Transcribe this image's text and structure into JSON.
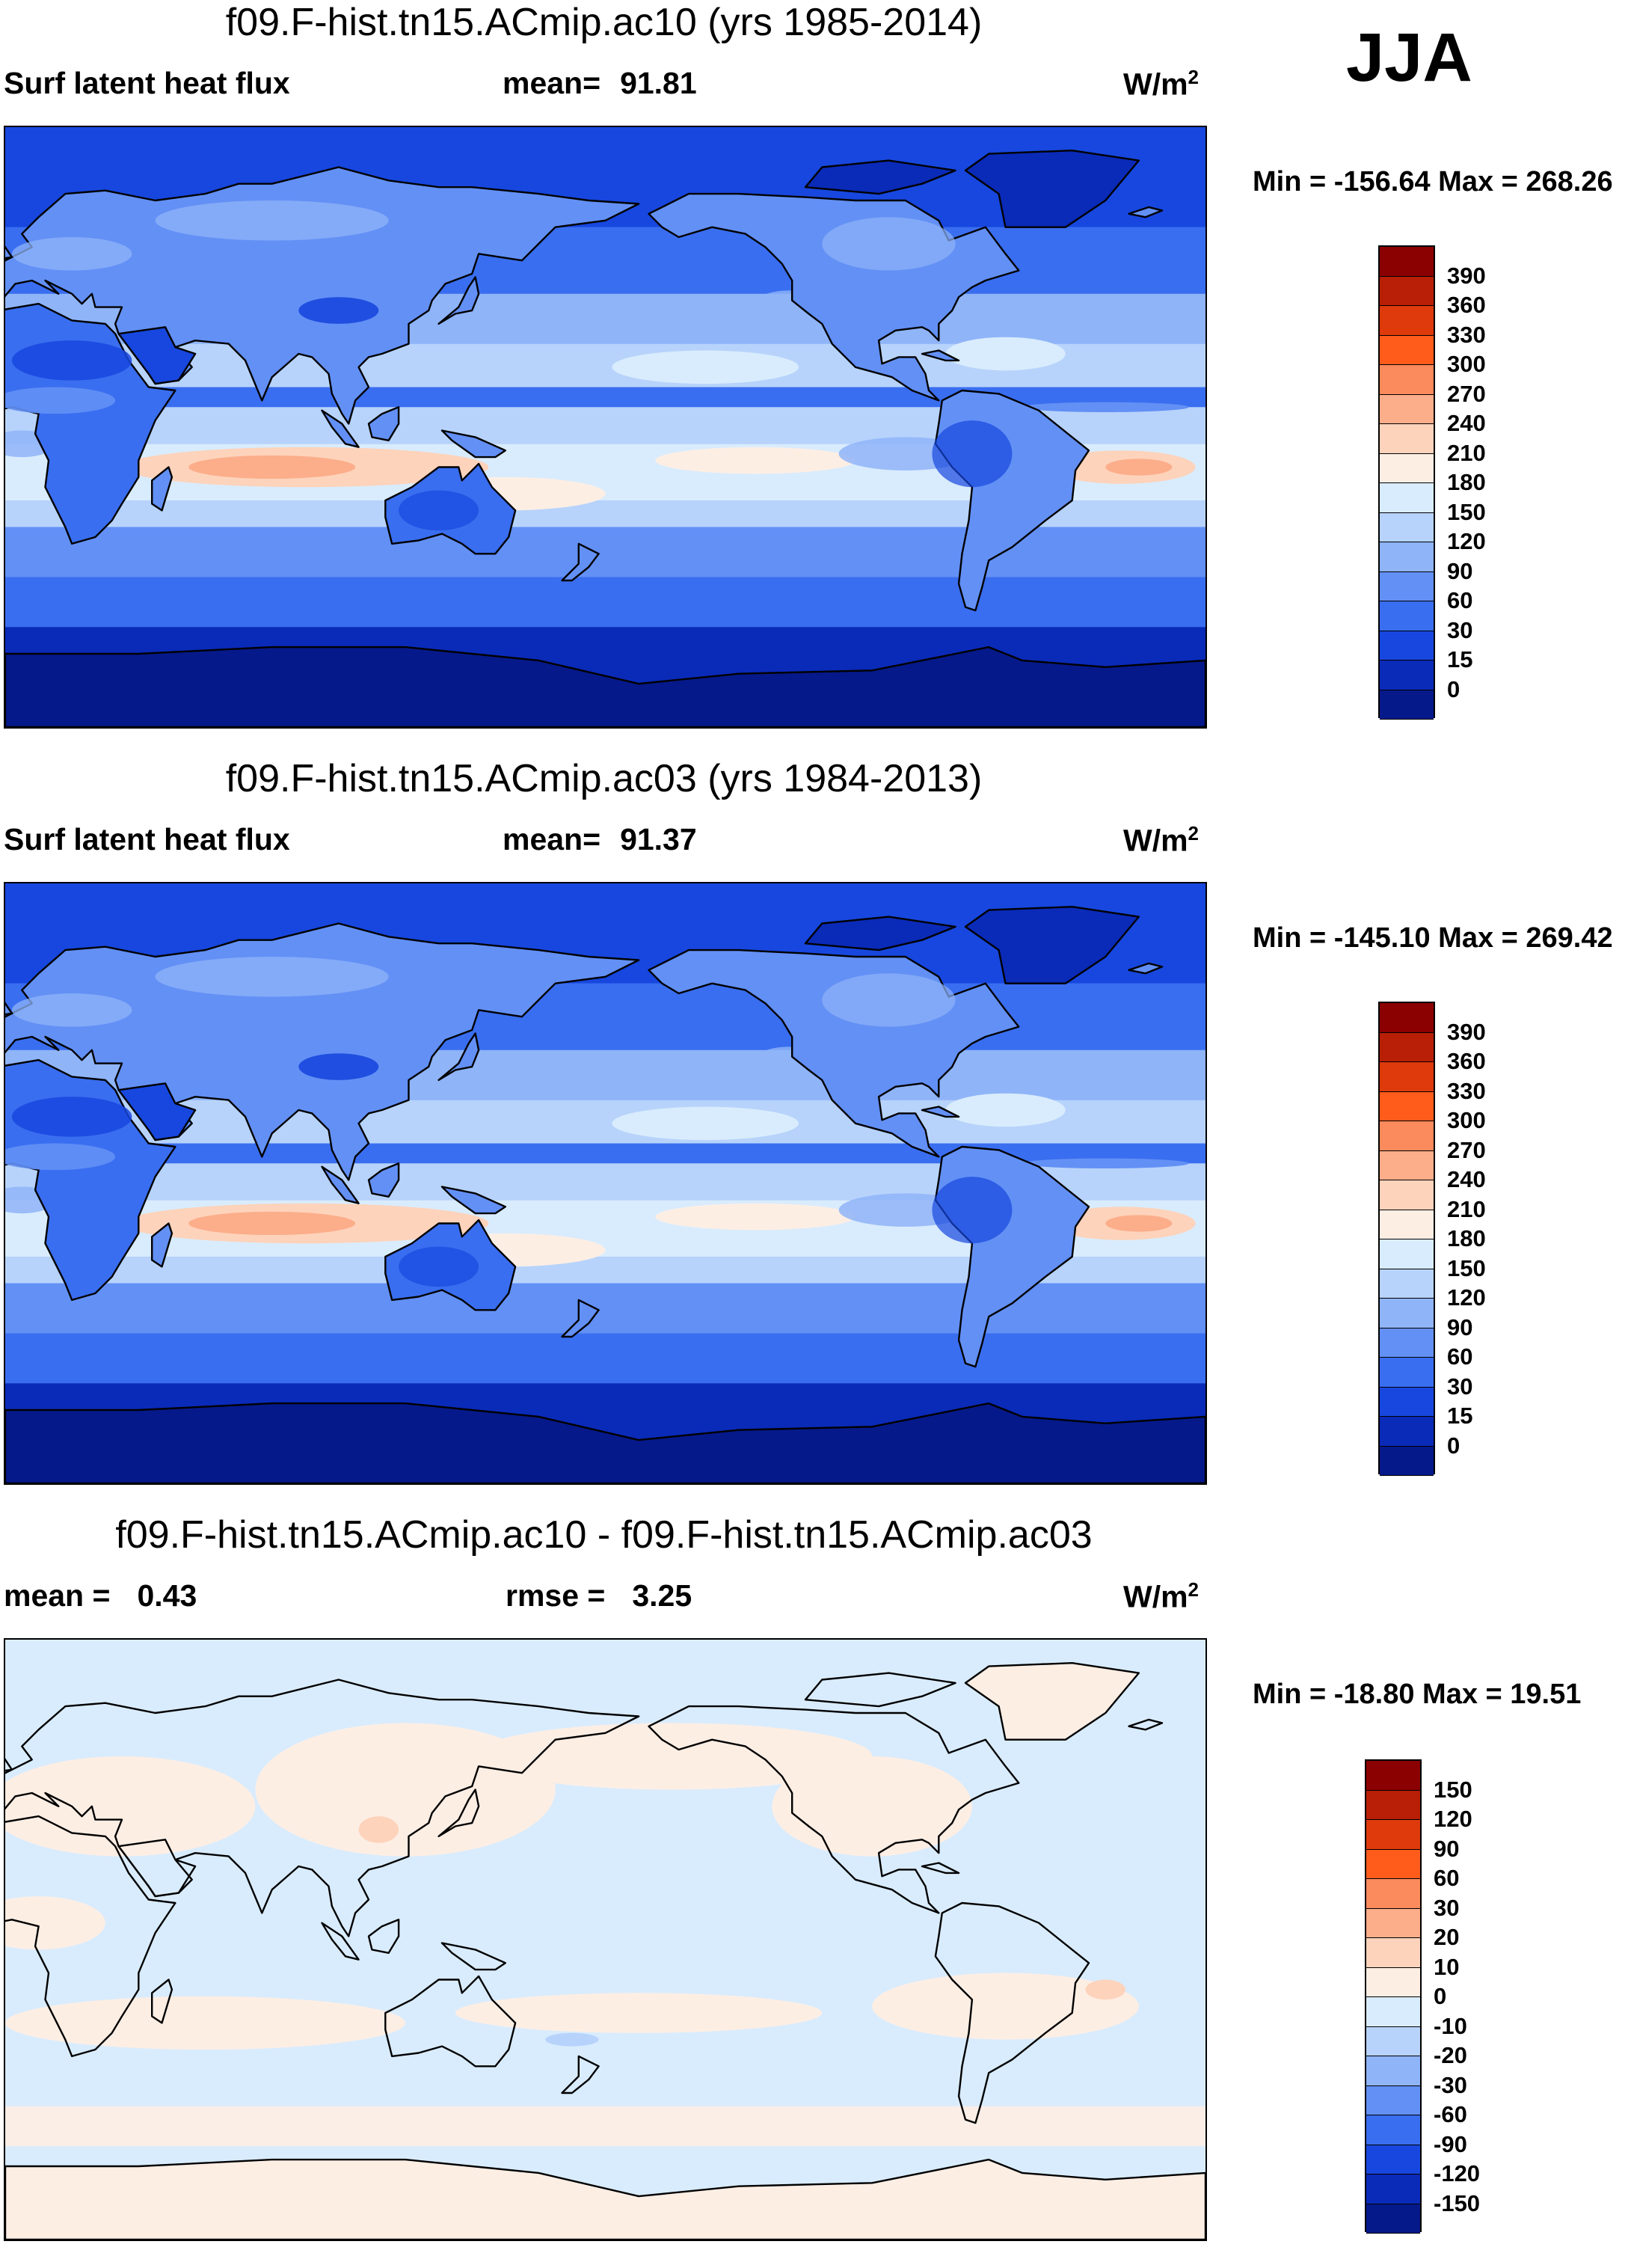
{
  "season": "JJA",
  "panels": [
    {
      "title": "f09.F-hist.tn15.ACmip.ac10 (yrs 1985-2014)",
      "left_label": "Surf latent heat flux",
      "mid_label": "mean=",
      "mid_value": "91.81",
      "units": "W/m",
      "units_sup": "2",
      "min_max": "Min = -156.64 Max = 268.26",
      "map_variant": "field",
      "legend": {
        "labels": [
          "390",
          "360",
          "330",
          "300",
          "270",
          "240",
          "210",
          "180",
          "150",
          "120",
          "90",
          "60",
          "30",
          "15",
          "0"
        ],
        "colors": [
          "#8b0000",
          "#b81f06",
          "#de3a0c",
          "#ff5c1c",
          "#fb8a5c",
          "#fcad8a",
          "#fdd3bb",
          "#fdeee4",
          "#d9ecfd",
          "#b7d3fb",
          "#8fb4f8",
          "#6390f5",
          "#3a6ef0",
          "#1747de",
          "#0a2ab8",
          "#06198a"
        ]
      }
    },
    {
      "title": "f09.F-hist.tn15.ACmip.ac03 (yrs 1984-2013)",
      "left_label": "Surf latent heat flux",
      "mid_label": "mean=",
      "mid_value": "91.37",
      "units": "W/m",
      "units_sup": "2",
      "min_max": "Min = -145.10 Max = 269.42",
      "map_variant": "field",
      "legend": {
        "labels": [
          "390",
          "360",
          "330",
          "300",
          "270",
          "240",
          "210",
          "180",
          "150",
          "120",
          "90",
          "60",
          "30",
          "15",
          "0"
        ],
        "colors": [
          "#8b0000",
          "#b81f06",
          "#de3a0c",
          "#ff5c1c",
          "#fb8a5c",
          "#fcad8a",
          "#fdd3bb",
          "#fdeee4",
          "#d9ecfd",
          "#b7d3fb",
          "#8fb4f8",
          "#6390f5",
          "#3a6ef0",
          "#1747de",
          "#0a2ab8",
          "#06198a"
        ]
      }
    },
    {
      "title": "f09.F-hist.tn15.ACmip.ac10 - f09.F-hist.tn15.ACmip.ac03",
      "left_label": "mean =",
      "left_value": "0.43",
      "mid_label": "rmse =",
      "mid_value": "3.25",
      "units": "W/m",
      "units_sup": "2",
      "min_max": "Min = -18.80 Max =  19.51",
      "map_variant": "diff",
      "legend": {
        "labels": [
          "150",
          "120",
          "90",
          "60",
          "30",
          "20",
          "10",
          "0",
          "-10",
          "-20",
          "-30",
          "-60",
          "-90",
          "-120",
          "-150"
        ],
        "colors": [
          "#8b0000",
          "#b81f06",
          "#de3a0c",
          "#ff5c1c",
          "#fb8a5c",
          "#fcad8a",
          "#fdd3bb",
          "#fdeee4",
          "#d9ecfd",
          "#b7d3fb",
          "#8fb4f8",
          "#6390f5",
          "#3a6ef0",
          "#1747de",
          "#0a2ab8",
          "#06198a"
        ]
      }
    }
  ]
}
